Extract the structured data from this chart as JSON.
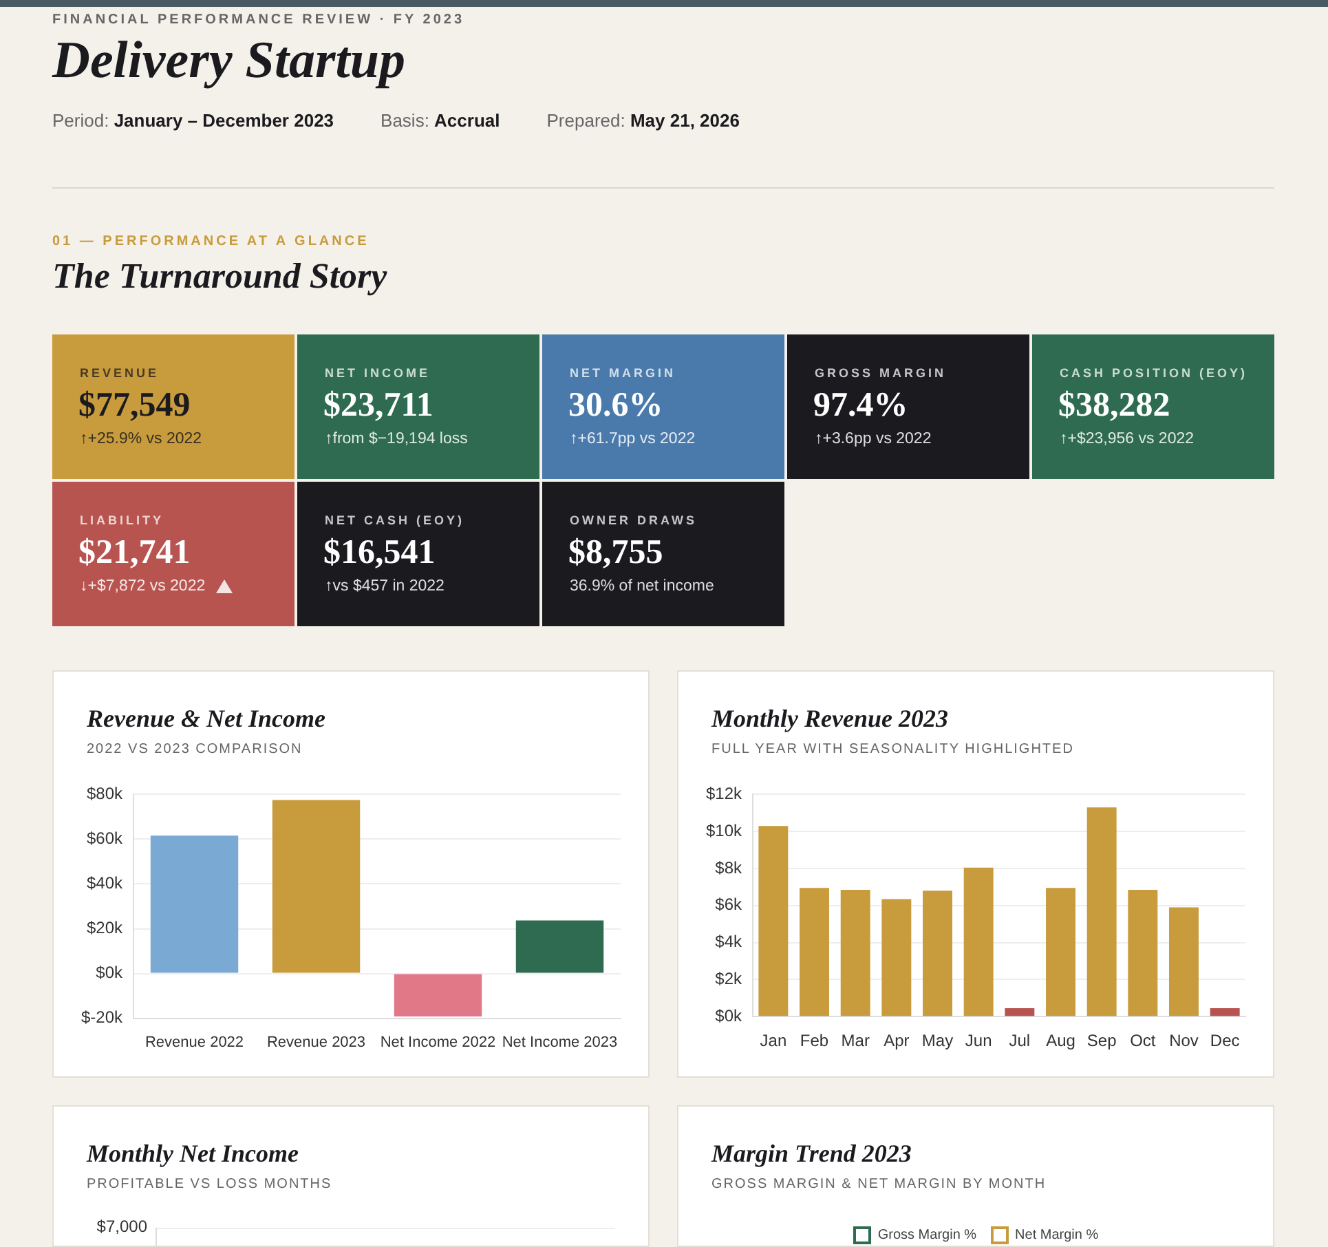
{
  "chart_data": [
    {
      "type": "other",
      "title": "Delivery Startup",
      "subtitle": "FINANCIAL PERFORMANCE REVIEW · FY 2023",
      "annotations": [
        "Period: January – December 2023",
        "Basis: Accrual",
        "Prepared: May 21, 2026"
      ]
    },
    {
      "type": "other",
      "title": "The Turnaround Story",
      "subtitle": "01 — PERFORMANCE AT A GLANCE"
    },
    {
      "type": "other",
      "title": "REVENUE",
      "subtitle": "$77,549",
      "annotations": [
        "↑+25.9% vs 2022"
      ],
      "color": "#c89b3c"
    },
    {
      "type": "other",
      "title": "NET INCOME",
      "subtitle": "$23,711",
      "annotations": [
        "↑from $−19,194 loss"
      ],
      "color": "#2e6b50"
    },
    {
      "type": "other",
      "title": "NET MARGIN",
      "subtitle": "30.6%",
      "annotations": [
        "↑+61.7pp vs 2022"
      ],
      "color": "#4a7aab"
    },
    {
      "type": "other",
      "title": "GROSS MARGIN",
      "subtitle": "97.4%",
      "annotations": [
        "↑+3.6pp vs 2022"
      ],
      "color": "#1b1a1f"
    },
    {
      "type": "other",
      "title": "CASH POSITION (EOY)",
      "subtitle": "$38,282",
      "annotations": [
        "↑+$23,956 vs 2022"
      ],
      "color": "#2e6b50"
    },
    {
      "type": "other",
      "title": "LIABILITY",
      "subtitle": "$21,741",
      "annotations": [
        "↓+$7,872 vs 2022"
      ],
      "color": "#b85450"
    },
    {
      "type": "other",
      "title": "NET CASH (EOY)",
      "subtitle": "$16,541",
      "annotations": [
        "↑vs $457 in 2022"
      ],
      "color": "#1b1a1f"
    },
    {
      "type": "other",
      "title": "OWNER DRAWS",
      "subtitle": "$8,755",
      "annotations": [
        "36.9% of net income"
      ],
      "color": "#1b1a1f"
    },
    {
      "type": "bar",
      "title": "Revenue & Net Income",
      "subtitle": "2022 VS 2023 COMPARISON",
      "categories": [
        "Revenue 2022",
        "Revenue 2023",
        "Net Income 2022",
        "Net Income 2023"
      ],
      "values": [
        61600,
        77500,
        -19200,
        23700
      ],
      "colors": [
        "#7aaad4",
        "#c89b3c",
        "#e07888",
        "#2e6b50"
      ],
      "ylim": [
        -20000,
        80000
      ],
      "yticks": [
        {
          "value": -20000,
          "label": "$-20k"
        },
        {
          "value": 0,
          "label": "$0k"
        },
        {
          "value": 20000,
          "label": "$20k"
        },
        {
          "value": 40000,
          "label": "$40k"
        },
        {
          "value": 60000,
          "label": "$60k"
        },
        {
          "value": 80000,
          "label": "$80k"
        }
      ],
      "grid": "y",
      "legend": false
    },
    {
      "type": "bar",
      "title": "Monthly Revenue 2023",
      "subtitle": "FULL YEAR WITH SEASONALITY HIGHLIGHTED",
      "categories": [
        "Jan",
        "Feb",
        "Mar",
        "Apr",
        "May",
        "Jun",
        "Jul",
        "Aug",
        "Sep",
        "Oct",
        "Nov",
        "Dec"
      ],
      "values": [
        10300,
        6950,
        6850,
        6350,
        6800,
        8050,
        450,
        6950,
        11300,
        6850,
        5900,
        450
      ],
      "colors": [
        "#c89b3c",
        "#c89b3c",
        "#c89b3c",
        "#c89b3c",
        "#c89b3c",
        "#c89b3c",
        "#b85450",
        "#c89b3c",
        "#c89b3c",
        "#c89b3c",
        "#c89b3c",
        "#b85450"
      ],
      "ylim": [
        0,
        12000
      ],
      "yticks": [
        {
          "value": 0,
          "label": "$0k"
        },
        {
          "value": 2000,
          "label": "$2k"
        },
        {
          "value": 4000,
          "label": "$4k"
        },
        {
          "value": 6000,
          "label": "$6k"
        },
        {
          "value": 8000,
          "label": "$8k"
        },
        {
          "value": 10000,
          "label": "$10k"
        },
        {
          "value": 12000,
          "label": "$12k"
        }
      ],
      "grid": "y",
      "legend": false
    },
    {
      "type": "other",
      "title": "Monthly Net Income",
      "subtitle": "PROFITABLE VS LOSS MONTHS",
      "annotations": [
        "$7,000"
      ]
    },
    {
      "type": "other",
      "title": "Margin Trend 2023",
      "subtitle": "GROSS MARGIN & NET MARGIN BY MONTH",
      "annotations": [
        "Gross Margin %",
        "Net Margin %"
      ],
      "colors": [
        "#2e6b50",
        "#c89b3c"
      ]
    }
  ]
}
